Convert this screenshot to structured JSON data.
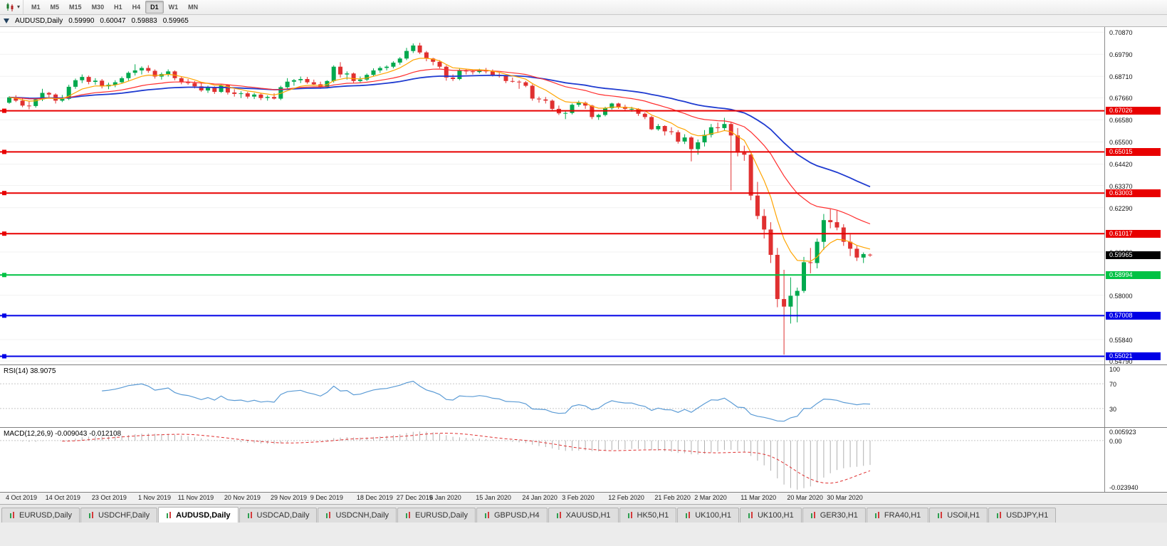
{
  "toolbar": {
    "timeframes": [
      {
        "label": "M1",
        "active": false
      },
      {
        "label": "M5",
        "active": false
      },
      {
        "label": "M15",
        "active": false
      },
      {
        "label": "M30",
        "active": false
      },
      {
        "label": "H1",
        "active": false
      },
      {
        "label": "H4",
        "active": false
      },
      {
        "label": "D1",
        "active": true
      },
      {
        "label": "W1",
        "active": false
      },
      {
        "label": "MN",
        "active": false
      }
    ]
  },
  "chart_header": {
    "symbol": "AUDUSD,Daily",
    "open": "0.59990",
    "high": "0.60047",
    "low": "0.59883",
    "close": "0.59965"
  },
  "price_axis": {
    "ticks": [
      "0.70870",
      "0.69790",
      "0.68710",
      "0.67660",
      "0.66580",
      "0.65500",
      "0.64420",
      "0.63370",
      "0.62290",
      "0.60120",
      "0.58000",
      "0.55840",
      "0.54790"
    ],
    "current_price": {
      "value": 0.59965,
      "label": "0.59965",
      "bg": "#000000"
    }
  },
  "hlines": [
    {
      "price": 0.67026,
      "label": "0.67026",
      "color": "#e80000"
    },
    {
      "price": 0.65015,
      "label": "0.65015",
      "color": "#e80000"
    },
    {
      "price": 0.63003,
      "label": "0.63003",
      "color": "#e80000"
    },
    {
      "price": 0.61017,
      "label": "0.61017",
      "color": "#e80000"
    },
    {
      "price": 0.58994,
      "label": "0.58994",
      "color": "#00c244"
    },
    {
      "price": 0.57008,
      "label": "0.57008",
      "color": "#0000e6"
    },
    {
      "price": 0.55021,
      "label": "0.55021",
      "color": "#0000e6"
    }
  ],
  "indicators": {
    "rsi": {
      "label": "RSI(14) 38.9075",
      "value": 38.9075,
      "axis_ticks": [
        "100",
        "70",
        "30"
      ],
      "levels": [
        70,
        30
      ],
      "line_color": "#5b9bd5"
    },
    "macd": {
      "label": "MACD(12,26,9) -0.009043 -0.012108",
      "macd_value": -0.009043,
      "signal_value": -0.012108,
      "axis_ticks": [
        "0.005923",
        "0.00",
        "-0.023940"
      ],
      "range": [
        -0.02394,
        0.005923
      ],
      "histogram_color": "#b0b0b0",
      "signal_color": "#e03030"
    }
  },
  "time_axis": [
    {
      "index": 0,
      "label": "4 Oct 2019"
    },
    {
      "index": 6,
      "label": "14 Oct 2019"
    },
    {
      "index": 13,
      "label": "23 Oct 2019"
    },
    {
      "index": 20,
      "label": "1 Nov 2019"
    },
    {
      "index": 26,
      "label": "11 Nov 2019"
    },
    {
      "index": 33,
      "label": "20 Nov 2019"
    },
    {
      "index": 40,
      "label": "29 Nov 2019"
    },
    {
      "index": 46,
      "label": "9 Dec 2019"
    },
    {
      "index": 53,
      "label": "18 Dec 2019"
    },
    {
      "index": 59,
      "label": "27 Dec 2019"
    },
    {
      "index": 64,
      "label": "6 Jan 2020"
    },
    {
      "index": 71,
      "label": "15 Jan 2020"
    },
    {
      "index": 78,
      "label": "24 Jan 2020"
    },
    {
      "index": 84,
      "label": "3 Feb 2020"
    },
    {
      "index": 91,
      "label": "12 Feb 2020"
    },
    {
      "index": 98,
      "label": "21 Feb 2020"
    },
    {
      "index": 104,
      "label": "2 Mar 2020"
    },
    {
      "index": 111,
      "label": "11 Mar 2020"
    },
    {
      "index": 118,
      "label": "20 Mar 2020"
    },
    {
      "index": 124,
      "label": "30 Mar 2020"
    }
  ],
  "tabs": [
    {
      "label": "EURUSD,Daily",
      "active": false
    },
    {
      "label": "USDCHF,Daily",
      "active": false
    },
    {
      "label": "AUDUSD,Daily",
      "active": true
    },
    {
      "label": "USDCAD,Daily",
      "active": false
    },
    {
      "label": "USDCNH,Daily",
      "active": false
    },
    {
      "label": "EURUSD,Daily",
      "active": false
    },
    {
      "label": "GBPUSD,H4",
      "active": false
    },
    {
      "label": "XAUUSD,H1",
      "active": false
    },
    {
      "label": "HK50,H1",
      "active": false
    },
    {
      "label": "UK100,H1",
      "active": false
    },
    {
      "label": "UK100,H1",
      "active": false
    },
    {
      "label": "GER30,H1",
      "active": false
    },
    {
      "label": "FRA40,H1",
      "active": false
    },
    {
      "label": "USOil,H1",
      "active": false
    },
    {
      "label": "USDJPY,H1",
      "active": false
    }
  ],
  "chart_data": {
    "type": "candlestick",
    "symbol": "AUDUSD",
    "timeframe": "Daily",
    "price_range": [
      0.5462,
      0.7112
    ],
    "up_color": "#00a94e",
    "down_color": "#e03030",
    "overlays": [
      {
        "name": "EMA fast",
        "period": 8,
        "color": "#ffa400"
      },
      {
        "name": "EMA medium",
        "period": 25,
        "color": "#ff2e2e"
      },
      {
        "name": "EMA slow",
        "period": 50,
        "color": "#1f3bd0"
      }
    ],
    "candles": [
      [
        0.6742,
        0.6774,
        0.6737,
        0.6768
      ],
      [
        0.6768,
        0.6779,
        0.6745,
        0.6752
      ],
      [
        0.6752,
        0.6762,
        0.672,
        0.6728
      ],
      [
        0.6728,
        0.6748,
        0.671,
        0.6726
      ],
      [
        0.6726,
        0.6765,
        0.6718,
        0.6758
      ],
      [
        0.6758,
        0.681,
        0.675,
        0.679
      ],
      [
        0.679,
        0.6795,
        0.6762,
        0.6782
      ],
      [
        0.6782,
        0.6788,
        0.6738,
        0.6752
      ],
      [
        0.6752,
        0.678,
        0.6745,
        0.6761
      ],
      [
        0.6761,
        0.683,
        0.6755,
        0.682
      ],
      [
        0.682,
        0.686,
        0.681,
        0.6852
      ],
      [
        0.6852,
        0.688,
        0.6838,
        0.6868
      ],
      [
        0.6868,
        0.6875,
        0.6832,
        0.6844
      ],
      [
        0.6844,
        0.6862,
        0.683,
        0.685
      ],
      [
        0.685,
        0.6858,
        0.6812,
        0.6822
      ],
      [
        0.6822,
        0.684,
        0.6808,
        0.683
      ],
      [
        0.683,
        0.6852,
        0.6818,
        0.6842
      ],
      [
        0.6842,
        0.687,
        0.6835,
        0.6862
      ],
      [
        0.6862,
        0.6895,
        0.685,
        0.6888
      ],
      [
        0.6888,
        0.693,
        0.6875,
        0.69
      ],
      [
        0.69,
        0.692,
        0.688,
        0.6912
      ],
      [
        0.6912,
        0.6925,
        0.6888,
        0.6898
      ],
      [
        0.6898,
        0.6905,
        0.686,
        0.687
      ],
      [
        0.687,
        0.689,
        0.6855,
        0.6882
      ],
      [
        0.6882,
        0.6905,
        0.687,
        0.6895
      ],
      [
        0.6895,
        0.69,
        0.6852,
        0.6862
      ],
      [
        0.6862,
        0.687,
        0.6832,
        0.6845
      ],
      [
        0.6845,
        0.6858,
        0.683,
        0.6838
      ],
      [
        0.6838,
        0.6848,
        0.6812,
        0.6822
      ],
      [
        0.6822,
        0.684,
        0.6795,
        0.6802
      ],
      [
        0.6802,
        0.6825,
        0.679,
        0.6818
      ],
      [
        0.6818,
        0.6822,
        0.6785,
        0.6795
      ],
      [
        0.6795,
        0.6835,
        0.679,
        0.6828
      ],
      [
        0.6828,
        0.6832,
        0.6782,
        0.6792
      ],
      [
        0.6792,
        0.6808,
        0.6772,
        0.6785
      ],
      [
        0.6785,
        0.6798,
        0.6765,
        0.6788
      ],
      [
        0.6788,
        0.6795,
        0.6762,
        0.6772
      ],
      [
        0.6772,
        0.679,
        0.676,
        0.6782
      ],
      [
        0.6782,
        0.6788,
        0.6755,
        0.6765
      ],
      [
        0.6765,
        0.6778,
        0.6752,
        0.677
      ],
      [
        0.677,
        0.6788,
        0.6758,
        0.6762
      ],
      [
        0.6762,
        0.6825,
        0.6755,
        0.6818
      ],
      [
        0.6818,
        0.6862,
        0.681,
        0.6845
      ],
      [
        0.6845,
        0.6858,
        0.6825,
        0.6852
      ],
      [
        0.6852,
        0.687,
        0.6838,
        0.6858
      ],
      [
        0.6858,
        0.6868,
        0.6835,
        0.6842
      ],
      [
        0.6842,
        0.6855,
        0.6828,
        0.6832
      ],
      [
        0.6832,
        0.6845,
        0.681,
        0.6818
      ],
      [
        0.6818,
        0.6852,
        0.6812,
        0.6848
      ],
      [
        0.6848,
        0.6925,
        0.684,
        0.6918
      ],
      [
        0.6918,
        0.694,
        0.6865,
        0.688
      ],
      [
        0.688,
        0.6895,
        0.6855,
        0.6885
      ],
      [
        0.6885,
        0.689,
        0.6838,
        0.6848
      ],
      [
        0.6848,
        0.687,
        0.6842,
        0.6855
      ],
      [
        0.6855,
        0.6885,
        0.6848,
        0.6878
      ],
      [
        0.6878,
        0.691,
        0.687,
        0.69
      ],
      [
        0.69,
        0.692,
        0.6888,
        0.6912
      ],
      [
        0.6912,
        0.6925,
        0.69,
        0.6918
      ],
      [
        0.6918,
        0.6945,
        0.691,
        0.6938
      ],
      [
        0.6938,
        0.6965,
        0.6928,
        0.6958
      ],
      [
        0.6958,
        0.701,
        0.695,
        0.6995
      ],
      [
        0.6995,
        0.7032,
        0.6985,
        0.7022
      ],
      [
        0.7022,
        0.7035,
        0.698,
        0.6988
      ],
      [
        0.6988,
        0.6995,
        0.6945,
        0.6958
      ],
      [
        0.6958,
        0.6962,
        0.6925,
        0.6942
      ],
      [
        0.6942,
        0.695,
        0.691,
        0.6918
      ],
      [
        0.6918,
        0.6925,
        0.685,
        0.6865
      ],
      [
        0.6865,
        0.688,
        0.6848,
        0.6858
      ],
      [
        0.6858,
        0.6912,
        0.6852,
        0.69
      ],
      [
        0.69,
        0.6908,
        0.688,
        0.6895
      ],
      [
        0.6895,
        0.6902,
        0.688,
        0.6892
      ],
      [
        0.6892,
        0.6908,
        0.6885,
        0.6902
      ],
      [
        0.6902,
        0.6912,
        0.6885,
        0.6895
      ],
      [
        0.6895,
        0.6905,
        0.687,
        0.6878
      ],
      [
        0.6878,
        0.6888,
        0.6865,
        0.6872
      ],
      [
        0.6872,
        0.6878,
        0.6838,
        0.6848
      ],
      [
        0.6848,
        0.6865,
        0.684,
        0.6845
      ],
      [
        0.6845,
        0.6852,
        0.681,
        0.6842
      ],
      [
        0.6842,
        0.6848,
        0.6818,
        0.6825
      ],
      [
        0.6825,
        0.6832,
        0.6752,
        0.6762
      ],
      [
        0.6762,
        0.6772,
        0.6742,
        0.6758
      ],
      [
        0.6758,
        0.677,
        0.6738,
        0.6752
      ],
      [
        0.6752,
        0.6758,
        0.67,
        0.6712
      ],
      [
        0.6712,
        0.6728,
        0.6682,
        0.669
      ],
      [
        0.669,
        0.6702,
        0.6662,
        0.6692
      ],
      [
        0.6692,
        0.6738,
        0.6685,
        0.6732
      ],
      [
        0.6732,
        0.6752,
        0.6722,
        0.6742
      ],
      [
        0.6742,
        0.6748,
        0.6712,
        0.6728
      ],
      [
        0.6728,
        0.6732,
        0.6662,
        0.6672
      ],
      [
        0.6672,
        0.6688,
        0.6658,
        0.6682
      ],
      [
        0.6682,
        0.6722,
        0.6675,
        0.6715
      ],
      [
        0.6715,
        0.6742,
        0.6708,
        0.6738
      ],
      [
        0.6738,
        0.6742,
        0.6712,
        0.6722
      ],
      [
        0.6722,
        0.6732,
        0.6705,
        0.6712
      ],
      [
        0.6712,
        0.6722,
        0.6698,
        0.6712
      ],
      [
        0.6712,
        0.6715,
        0.6678,
        0.6688
      ],
      [
        0.6688,
        0.6695,
        0.6662,
        0.6672
      ],
      [
        0.6672,
        0.6678,
        0.6608,
        0.6612
      ],
      [
        0.6612,
        0.6638,
        0.6605,
        0.6628
      ],
      [
        0.6628,
        0.6632,
        0.6582,
        0.6602
      ],
      [
        0.6602,
        0.6622,
        0.6585,
        0.6598
      ],
      [
        0.6598,
        0.6608,
        0.6542,
        0.6552
      ],
      [
        0.6552,
        0.6588,
        0.654,
        0.6572
      ],
      [
        0.6572,
        0.6578,
        0.6455,
        0.6515
      ],
      [
        0.6515,
        0.6562,
        0.6488,
        0.6548
      ],
      [
        0.6548,
        0.6608,
        0.6528,
        0.6585
      ],
      [
        0.6585,
        0.6638,
        0.6572,
        0.6622
      ],
      [
        0.6622,
        0.6645,
        0.6598,
        0.6618
      ],
      [
        0.6618,
        0.6668,
        0.6605,
        0.6638
      ],
      [
        0.6638,
        0.6648,
        0.6313,
        0.6582
      ],
      [
        0.6582,
        0.6618,
        0.648,
        0.6498
      ],
      [
        0.6498,
        0.6532,
        0.6458,
        0.6488
      ],
      [
        0.6488,
        0.6492,
        0.6265,
        0.6288
      ],
      [
        0.6288,
        0.6355,
        0.6172,
        0.6188
      ],
      [
        0.6188,
        0.6222,
        0.6078,
        0.6122
      ],
      [
        0.6122,
        0.6158,
        0.5958,
        0.5998
      ],
      [
        0.5998,
        0.6032,
        0.5742,
        0.5782
      ],
      [
        0.5782,
        0.5925,
        0.551,
        0.5745
      ],
      [
        0.5745,
        0.5888,
        0.5662,
        0.5798
      ],
      [
        0.5798,
        0.5838,
        0.5668,
        0.5822
      ],
      [
        0.5822,
        0.5988,
        0.5812,
        0.5962
      ],
      [
        0.5962,
        0.6032,
        0.5908,
        0.5958
      ],
      [
        0.5958,
        0.6078,
        0.5932,
        0.6062
      ],
      [
        0.6062,
        0.6198,
        0.6022,
        0.6168
      ],
      [
        0.6168,
        0.6222,
        0.6128,
        0.6158
      ],
      [
        0.6158,
        0.6214,
        0.6118,
        0.6132
      ],
      [
        0.6132,
        0.6148,
        0.6042,
        0.6062
      ],
      [
        0.6062,
        0.6098,
        0.5992,
        0.6028
      ],
      [
        0.6028,
        0.6042,
        0.5968,
        0.5985
      ],
      [
        0.5985,
        0.601,
        0.5958,
        0.6002
      ],
      [
        0.5999,
        0.60047,
        0.59883,
        0.59965
      ]
    ]
  }
}
